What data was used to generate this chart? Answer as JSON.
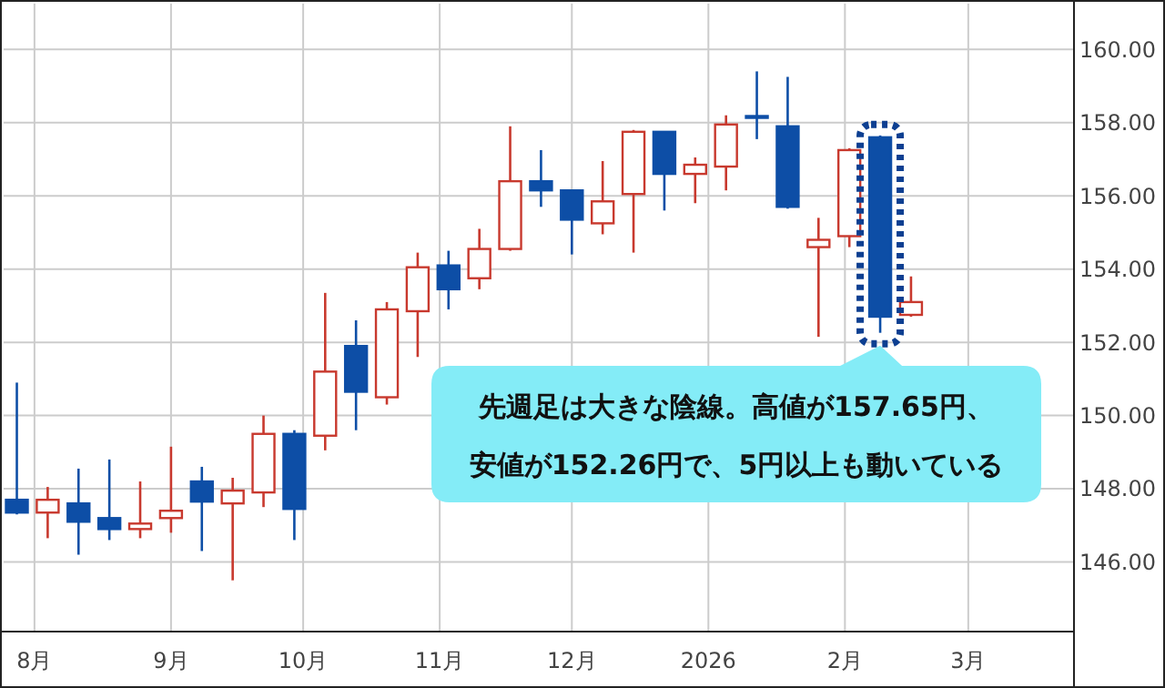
{
  "chart_data": {
    "type": "candlestick",
    "x": [
      "2025-07-28",
      "2025-08-04",
      "2025-08-11",
      "2025-08-18",
      "2025-08-25",
      "2025-09-01",
      "2025-09-08",
      "2025-09-15",
      "2025-09-22",
      "2025-09-29",
      "2025-10-06",
      "2025-10-13",
      "2025-10-20",
      "2025-10-27",
      "2025-11-03",
      "2025-11-10",
      "2025-11-17",
      "2025-11-24",
      "2025-12-01",
      "2025-12-08",
      "2025-12-15",
      "2025-12-22",
      "2025-12-29",
      "2026-01-05",
      "2026-01-12",
      "2026-01-19",
      "2026-01-26",
      "2026-02-02",
      "2026-02-09",
      "2026-02-16"
    ],
    "ohlc": [
      [
        147.7,
        150.9,
        147.3,
        147.35
      ],
      [
        147.35,
        148.05,
        146.65,
        147.7
      ],
      [
        147.6,
        148.55,
        146.2,
        147.1
      ],
      [
        147.2,
        148.8,
        146.6,
        146.9
      ],
      [
        146.9,
        148.2,
        146.65,
        147.05
      ],
      [
        147.2,
        149.15,
        146.8,
        147.4
      ],
      [
        148.2,
        148.6,
        146.3,
        147.65
      ],
      [
        147.6,
        148.3,
        145.5,
        147.95
      ],
      [
        147.9,
        150.0,
        147.5,
        149.5
      ],
      [
        149.5,
        149.6,
        146.6,
        147.45
      ],
      [
        149.45,
        153.35,
        149.05,
        151.2
      ],
      [
        151.9,
        152.6,
        149.6,
        150.65
      ],
      [
        150.5,
        153.1,
        150.3,
        152.9
      ],
      [
        152.85,
        154.45,
        151.6,
        154.05
      ],
      [
        154.1,
        154.5,
        152.9,
        153.45
      ],
      [
        153.75,
        155.1,
        153.45,
        154.55
      ],
      [
        154.55,
        157.9,
        154.5,
        156.4
      ],
      [
        156.4,
        157.25,
        155.7,
        156.15
      ],
      [
        156.15,
        156.15,
        154.4,
        155.35
      ],
      [
        155.25,
        156.95,
        154.95,
        155.85
      ],
      [
        156.05,
        157.8,
        154.45,
        157.75
      ],
      [
        157.75,
        157.75,
        155.6,
        156.6
      ],
      [
        156.6,
        157.05,
        155.8,
        156.85
      ],
      [
        156.8,
        158.2,
        156.15,
        157.95
      ],
      [
        158.18,
        159.4,
        157.55,
        158.14
      ],
      [
        157.9,
        159.25,
        155.65,
        155.7
      ],
      [
        154.6,
        155.4,
        152.15,
        154.8
      ],
      [
        154.9,
        157.3,
        154.6,
        157.25
      ],
      [
        157.6,
        157.65,
        152.26,
        152.7
      ],
      [
        152.75,
        153.8,
        152.7,
        153.1
      ]
    ],
    "xlim": [
      "2025-07-25",
      "2026-03-25"
    ],
    "xticks": [
      {
        "value": "2025-08-01",
        "label": "8月"
      },
      {
        "value": "2025-09-01",
        "label": "9月"
      },
      {
        "value": "2025-10-01",
        "label": "10月"
      },
      {
        "value": "2025-11-01",
        "label": "11月"
      },
      {
        "value": "2025-12-01",
        "label": "12月"
      },
      {
        "value": "2026-01-01",
        "label": "2026"
      },
      {
        "value": "2026-02-01",
        "label": "2月"
      },
      {
        "value": "2026-03-01",
        "label": "3月"
      }
    ],
    "ylim": [
      144.1,
      161.25
    ],
    "yticks": [
      {
        "value": 146,
        "label": "146.00"
      },
      {
        "value": 148,
        "label": "148.00"
      },
      {
        "value": 150,
        "label": "150.00"
      },
      {
        "value": 152,
        "label": "152.00"
      },
      {
        "value": 154,
        "label": "154.00"
      },
      {
        "value": 156,
        "label": "156.00"
      },
      {
        "value": 158,
        "label": "158.00"
      },
      {
        "value": 160,
        "label": "160.00"
      }
    ],
    "grid": true,
    "annotations": [
      {
        "text": "先週足は大きな陰線。高値が157.65円、安値が152.26円で、5円以上も動いている",
        "x": "2026-02-09",
        "y": 152.26
      }
    ]
  }
}
